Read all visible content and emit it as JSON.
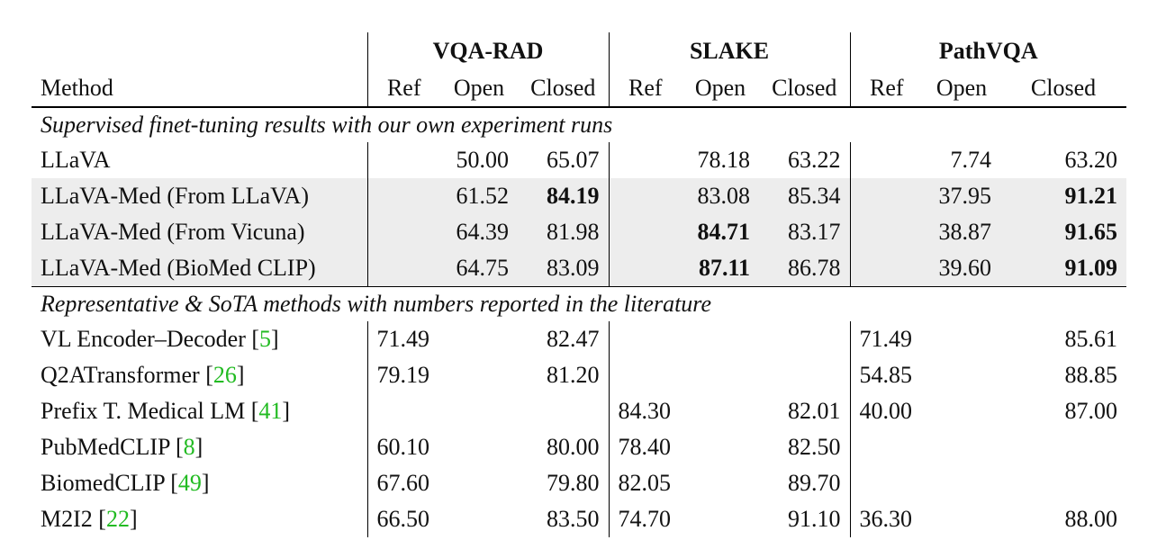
{
  "header": {
    "method": "Method",
    "datasets": [
      "VQA-RAD",
      "SLAKE",
      "PathVQA"
    ],
    "subcols": [
      "Ref",
      "Open",
      "Closed"
    ]
  },
  "sections": [
    {
      "title": "Supervised finet-tuning results with our own experiment runs",
      "rows": [
        {
          "method": "LLaVA",
          "cite": "",
          "vqarad": [
            "",
            "50.00",
            "65.07"
          ],
          "slake": [
            "",
            "78.18",
            "63.22"
          ],
          "pathvqa": [
            "",
            "7.74",
            "63.20"
          ]
        },
        {
          "method": "LLaVA-Med (From LLaVA)",
          "cite": "",
          "vqarad": [
            "",
            "61.52",
            "84.19"
          ],
          "slake": [
            "",
            "83.08",
            "85.34"
          ],
          "pathvqa": [
            "",
            "37.95",
            "91.21"
          ]
        },
        {
          "method": "LLaVA-Med (From Vicuna)",
          "cite": "",
          "vqarad": [
            "",
            "64.39",
            "81.98"
          ],
          "slake": [
            "",
            "84.71",
            "83.17"
          ],
          "pathvqa": [
            "",
            "38.87",
            "91.65"
          ]
        },
        {
          "method": "LLaVA-Med (BioMed CLIP)",
          "cite": "",
          "vqarad": [
            "",
            "64.75",
            "83.09"
          ],
          "slake": [
            "",
            "87.11",
            "86.78"
          ],
          "pathvqa": [
            "",
            "39.60",
            "91.09"
          ]
        }
      ]
    },
    {
      "title": "Representative & SoTA methods with numbers reported in the literature",
      "rows": [
        {
          "method": "VL Encoder–Decoder ",
          "cite": "5",
          "vqarad": [
            "71.49",
            "",
            "82.47"
          ],
          "slake": [
            "",
            "",
            ""
          ],
          "pathvqa": [
            "71.49",
            "",
            "85.61"
          ]
        },
        {
          "method": "Q2ATransformer ",
          "cite": "26",
          "vqarad": [
            "79.19",
            "",
            "81.20"
          ],
          "slake": [
            "",
            "",
            ""
          ],
          "pathvqa": [
            "54.85",
            "",
            "88.85"
          ]
        },
        {
          "method": "Prefix T. Medical LM ",
          "cite": "41",
          "vqarad": [
            "",
            "",
            ""
          ],
          "slake": [
            "84.30",
            "",
            "82.01"
          ],
          "pathvqa": [
            "40.00",
            "",
            "87.00"
          ]
        },
        {
          "method": "PubMedCLIP ",
          "cite": "8",
          "vqarad": [
            "60.10",
            "",
            "80.00"
          ],
          "slake": [
            "78.40",
            "",
            "82.50"
          ],
          "pathvqa": [
            "",
            "",
            ""
          ]
        },
        {
          "method": "BiomedCLIP ",
          "cite": "49",
          "vqarad": [
            "67.60",
            "",
            "79.80"
          ],
          "slake": [
            "82.05",
            "",
            "89.70"
          ],
          "pathvqa": [
            "",
            "",
            ""
          ]
        },
        {
          "method": "M2I2 ",
          "cite": "22",
          "vqarad": [
            "66.50",
            "",
            "83.50"
          ],
          "slake": [
            "74.70",
            "",
            "91.10"
          ],
          "pathvqa": [
            "36.30",
            "",
            "88.00"
          ]
        }
      ]
    }
  ]
}
